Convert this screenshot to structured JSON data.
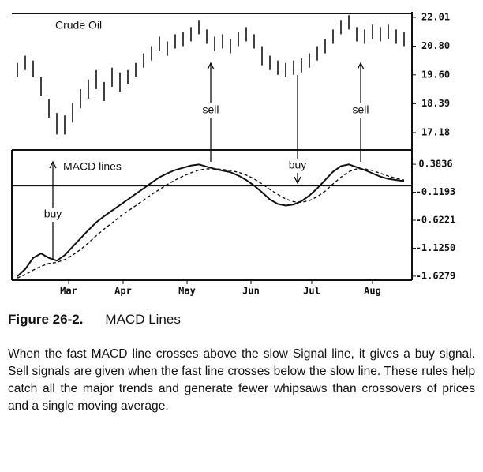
{
  "chart_data": [
    {
      "type": "hilo",
      "title": "Crude Oil",
      "ylim": [
        16.45,
        22.24
      ],
      "yticks": [
        {
          "value": 22.01,
          "label": "22.01"
        },
        {
          "value": 20.8,
          "label": "20.80"
        },
        {
          "value": 19.6,
          "label": "19.60"
        },
        18.39,
        17.18
      ],
      "series": [
        {
          "name": "high",
          "color": "#111111",
          "values": [
            20.1,
            20.4,
            20.2,
            19.5,
            18.6,
            18.0,
            17.9,
            18.4,
            19.0,
            19.4,
            19.8,
            19.3,
            19.9,
            19.7,
            19.8,
            20.1,
            20.5,
            20.8,
            21.2,
            21.0,
            21.3,
            21.4,
            21.6,
            21.9,
            21.5,
            21.2,
            21.3,
            21.1,
            21.4,
            21.6,
            21.3,
            20.8,
            20.4,
            20.2,
            20.1,
            20.2,
            20.3,
            20.5,
            20.8,
            21.1,
            21.5,
            21.9,
            22.1,
            21.6,
            21.5,
            21.7,
            21.6,
            21.7,
            21.5,
            21.4
          ]
        },
        {
          "name": "low",
          "color": "#111111",
          "values": [
            19.5,
            19.8,
            19.5,
            18.7,
            17.8,
            17.1,
            17.1,
            17.6,
            18.2,
            18.6,
            19.0,
            18.5,
            19.1,
            18.9,
            19.2,
            19.5,
            19.9,
            20.2,
            20.6,
            20.4,
            20.7,
            20.8,
            21.0,
            21.3,
            20.9,
            20.6,
            20.7,
            20.5,
            20.8,
            21.0,
            20.7,
            20.0,
            19.8,
            19.6,
            19.5,
            19.6,
            19.7,
            19.9,
            20.2,
            20.5,
            20.9,
            21.3,
            21.5,
            21.0,
            20.9,
            21.1,
            21.0,
            21.1,
            20.9,
            20.8
          ]
        }
      ],
      "annotations": [
        {
          "text": "sell",
          "x": 24.5
        },
        {
          "text": "buy",
          "x": 35.5
        },
        {
          "text": "sell",
          "x": 43.5
        }
      ]
    },
    {
      "type": "line",
      "title": "MACD lines",
      "ylim": [
        -1.7,
        0.64
      ],
      "yticks": [
        0.3836,
        -0.1193,
        -0.6221,
        {
          "value": -1.125,
          "label": "-1.1250"
        },
        -1.6279
      ],
      "xticks": [
        {
          "value": 6.5,
          "label": "Mar"
        },
        {
          "value": 13.4,
          "label": "Apr"
        },
        {
          "value": 21.5,
          "label": "May"
        },
        {
          "value": 29.6,
          "label": "Jun"
        },
        {
          "value": 37.3,
          "label": "Jul"
        },
        {
          "value": 45,
          "label": "Aug"
        }
      ],
      "hline": 0,
      "series": [
        {
          "name": "MACD",
          "color": "#111111",
          "style": "solid",
          "values": [
            -1.63,
            -1.5,
            -1.3,
            -1.22,
            -1.3,
            -1.35,
            -1.25,
            -1.1,
            -0.95,
            -0.8,
            -0.66,
            -0.55,
            -0.45,
            -0.35,
            -0.25,
            -0.15,
            -0.05,
            0.05,
            0.15,
            0.22,
            0.28,
            0.32,
            0.36,
            0.38,
            0.34,
            0.3,
            0.27,
            0.24,
            0.18,
            0.1,
            0.0,
            -0.12,
            -0.25,
            -0.33,
            -0.36,
            -0.34,
            -0.28,
            -0.18,
            -0.05,
            0.1,
            0.25,
            0.35,
            0.38,
            0.33,
            0.28,
            0.22,
            0.16,
            0.12,
            0.1,
            0.08
          ]
        },
        {
          "name": "Signal",
          "color": "#111111",
          "style": "dashed",
          "values": [
            -1.66,
            -1.6,
            -1.52,
            -1.45,
            -1.4,
            -1.38,
            -1.33,
            -1.25,
            -1.15,
            -1.03,
            -0.9,
            -0.78,
            -0.67,
            -0.56,
            -0.46,
            -0.36,
            -0.26,
            -0.16,
            -0.07,
            0.02,
            0.1,
            0.17,
            0.23,
            0.28,
            0.3,
            0.3,
            0.29,
            0.27,
            0.24,
            0.19,
            0.12,
            0.03,
            -0.07,
            -0.16,
            -0.24,
            -0.29,
            -0.3,
            -0.27,
            -0.2,
            -0.1,
            0.03,
            0.15,
            0.25,
            0.3,
            0.3,
            0.27,
            0.22,
            0.17,
            0.13,
            0.1
          ]
        }
      ],
      "annotations": [
        {
          "text": "buy",
          "x": 4.5
        }
      ]
    }
  ],
  "caption": {
    "label": "Figure 26-2.",
    "title": "MACD Lines",
    "text": "When the fast MACD line crosses above the slow Signal line, it gives a buy signal. Sell signals are given when the fast line crosses below the slow line. These rules help catch all the major trends and generate fewer whipsaws than crossovers of prices and a single moving average."
  }
}
